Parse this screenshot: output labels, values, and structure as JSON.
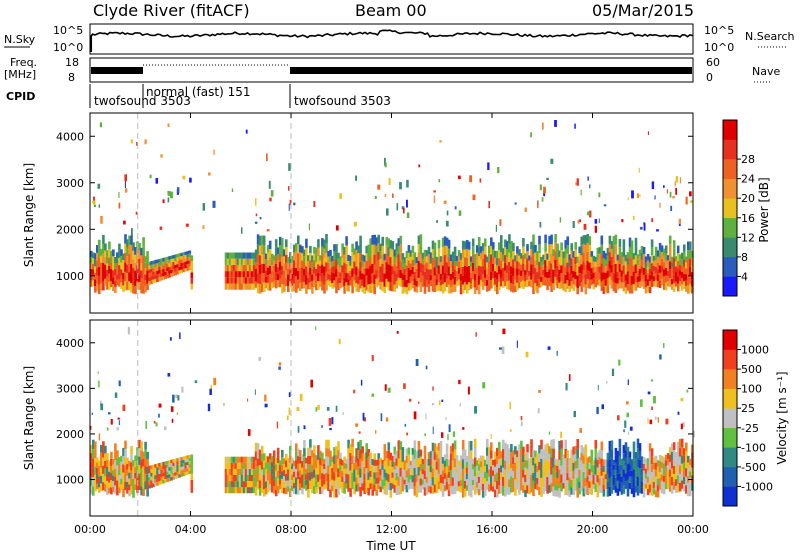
{
  "header": {
    "station": "Clyde River (fitACF)",
    "beam": "Beam 00",
    "date": "05/Mar/2015"
  },
  "top_panels": {
    "nsky_label": "N.Sky",
    "nsky_ticks": [
      "10^5",
      "10^0"
    ],
    "nsearch_label": "N.Search",
    "nsearch_ticks": [
      "10^5",
      "10^0"
    ],
    "freq_label": "Freq.",
    "freq_unit": "[MHz]",
    "freq_ticks": [
      "18",
      "8"
    ],
    "nave_label": "Nave",
    "nave_ticks": [
      "60",
      "0"
    ],
    "cpid_label": "CPID",
    "cpid_segments": [
      {
        "label": "twofsound 3503",
        "start_h": 0,
        "end_h": 1.9
      },
      {
        "label": "normal (fast) 151",
        "start_h": 1.9,
        "end_h": 8.0
      },
      {
        "label": "twofsound 3503",
        "start_h": 8.0,
        "end_h": 24
      }
    ]
  },
  "chart_data": [
    {
      "type": "heatmap",
      "name": "power-panel",
      "ylabel": "Slant Range [km]",
      "yticks": [
        "1000",
        "2000",
        "3000",
        "4000"
      ],
      "ylim": [
        200,
        4500
      ],
      "xlim": [
        0,
        24
      ],
      "colorbar": {
        "label": "Power [dB]",
        "ticks": [
          "4",
          "8",
          "12",
          "16",
          "20",
          "24",
          "28"
        ],
        "colors": [
          "#1a1aff",
          "#2a5cc0",
          "#3a8a70",
          "#5fb040",
          "#e8c020",
          "#f09030",
          "#f06020",
          "#e83020",
          "#e00000"
        ]
      },
      "echo_band_km": [
        600,
        1900
      ]
    },
    {
      "type": "heatmap",
      "name": "velocity-panel",
      "xlabel": "Time UT",
      "xticks": [
        "00:00",
        "04:00",
        "08:00",
        "12:00",
        "16:00",
        "20:00",
        "00:00"
      ],
      "ylabel": "Slant Range [km]",
      "yticks": [
        "1000",
        "2000",
        "3000",
        "4000"
      ],
      "ylim": [
        200,
        4500
      ],
      "xlim": [
        0,
        24
      ],
      "colorbar": {
        "label": "Velocity [m s⁻¹]",
        "ticks": [
          "1000",
          "500",
          "100",
          "25",
          "-25",
          "-100",
          "-500",
          "-1000"
        ],
        "colors": [
          "#1030d0",
          "#2060b0",
          "#308a80",
          "#60c040",
          "#c0c0c0",
          "#f0c020",
          "#f08020",
          "#f04020",
          "#e00000"
        ]
      },
      "echo_band_km": [
        600,
        1900
      ]
    }
  ],
  "colors": {
    "frame": "#000000",
    "dashed_divider": "#bbbbbb"
  }
}
